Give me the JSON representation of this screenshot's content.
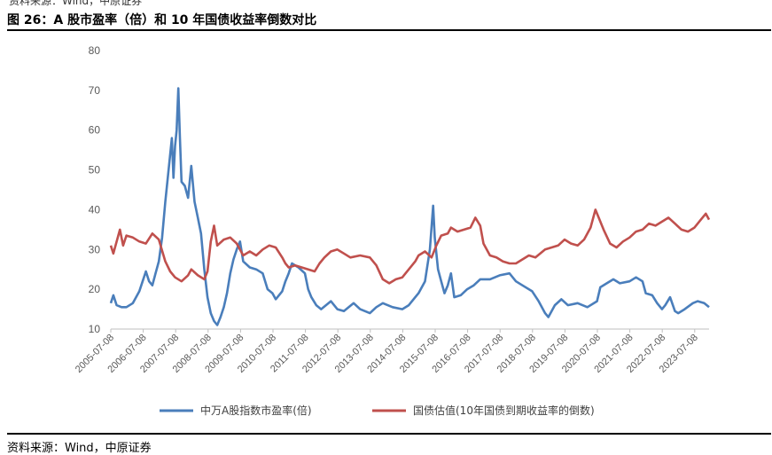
{
  "header": {
    "top_cut_text": "资料来源：Wind，中原证券",
    "figure_title": "图 26：A 股市盈率（倍）和 10 年国债收益率倒数对比"
  },
  "footer": {
    "source": "资料来源：Wind，中原证券"
  },
  "chart_data": {
    "type": "line",
    "title": "",
    "xlabel": "",
    "ylabel": "",
    "ylim": [
      10,
      80
    ],
    "yticks": [
      10,
      20,
      30,
      40,
      50,
      60,
      70,
      80
    ],
    "grid": false,
    "legend_position": "bottom",
    "x_tick_labels": [
      "2005-07-08",
      "2006-07-08",
      "2007-07-08",
      "2008-07-08",
      "2009-07-08",
      "2010-07-08",
      "2011-07-08",
      "2012-07-08",
      "2013-07-08",
      "2014-07-08",
      "2015-07-08",
      "2016-07-08",
      "2017-07-08",
      "2018-07-08",
      "2019-07-08",
      "2020-07-08",
      "2021-07-08",
      "2022-07-08",
      "2023-07-08"
    ],
    "series": [
      {
        "name": "中万A股指数市盈率(倍)",
        "color": "#4a7ebb",
        "points": [
          [
            2005.52,
            16.5
          ],
          [
            2005.6,
            18.5
          ],
          [
            2005.7,
            16.0
          ],
          [
            2005.85,
            15.5
          ],
          [
            2006.0,
            15.5
          ],
          [
            2006.2,
            16.5
          ],
          [
            2006.4,
            19.5
          ],
          [
            2006.5,
            22.0
          ],
          [
            2006.6,
            24.5
          ],
          [
            2006.7,
            22.0
          ],
          [
            2006.8,
            21.0
          ],
          [
            2006.9,
            24.0
          ],
          [
            2007.0,
            27.0
          ],
          [
            2007.1,
            33.0
          ],
          [
            2007.2,
            42.0
          ],
          [
            2007.3,
            50.0
          ],
          [
            2007.4,
            58.0
          ],
          [
            2007.45,
            48.0
          ],
          [
            2007.5,
            56.0
          ],
          [
            2007.55,
            60.0
          ],
          [
            2007.6,
            70.5
          ],
          [
            2007.65,
            58.0
          ],
          [
            2007.7,
            47.0
          ],
          [
            2007.8,
            46.0
          ],
          [
            2007.9,
            43.0
          ],
          [
            2008.0,
            51.0
          ],
          [
            2008.1,
            42.0
          ],
          [
            2008.2,
            38.0
          ],
          [
            2008.3,
            34.0
          ],
          [
            2008.4,
            25.0
          ],
          [
            2008.5,
            18.0
          ],
          [
            2008.6,
            14.0
          ],
          [
            2008.7,
            12.0
          ],
          [
            2008.8,
            11.0
          ],
          [
            2008.9,
            13.0
          ],
          [
            2009.0,
            15.5
          ],
          [
            2009.1,
            19.0
          ],
          [
            2009.2,
            24.0
          ],
          [
            2009.3,
            27.5
          ],
          [
            2009.4,
            30.0
          ],
          [
            2009.5,
            32.0
          ],
          [
            2009.6,
            27.0
          ],
          [
            2009.8,
            25.5
          ],
          [
            2010.0,
            25.0
          ],
          [
            2010.2,
            24.0
          ],
          [
            2010.35,
            20.0
          ],
          [
            2010.5,
            19.0
          ],
          [
            2010.6,
            17.5
          ],
          [
            2010.8,
            19.5
          ],
          [
            2010.9,
            22.0
          ],
          [
            2011.0,
            24.0
          ],
          [
            2011.1,
            26.5
          ],
          [
            2011.3,
            25.5
          ],
          [
            2011.5,
            24.0
          ],
          [
            2011.6,
            20.0
          ],
          [
            2011.7,
            18.0
          ],
          [
            2011.85,
            16.0
          ],
          [
            2012.0,
            15.0
          ],
          [
            2012.3,
            17.0
          ],
          [
            2012.5,
            15.0
          ],
          [
            2012.7,
            14.5
          ],
          [
            2013.0,
            16.5
          ],
          [
            2013.2,
            15.0
          ],
          [
            2013.5,
            14.0
          ],
          [
            2013.7,
            15.5
          ],
          [
            2013.9,
            16.5
          ],
          [
            2014.2,
            15.5
          ],
          [
            2014.5,
            15.0
          ],
          [
            2014.7,
            16.0
          ],
          [
            2014.9,
            18.0
          ],
          [
            2015.0,
            19.0
          ],
          [
            2015.2,
            22.0
          ],
          [
            2015.35,
            30.0
          ],
          [
            2015.45,
            41.0
          ],
          [
            2015.5,
            33.0
          ],
          [
            2015.6,
            25.0
          ],
          [
            2015.7,
            22.0
          ],
          [
            2015.8,
            19.0
          ],
          [
            2015.9,
            21.0
          ],
          [
            2016.0,
            24.0
          ],
          [
            2016.1,
            18.0
          ],
          [
            2016.3,
            18.5
          ],
          [
            2016.5,
            20.0
          ],
          [
            2016.7,
            21.0
          ],
          [
            2016.9,
            22.5
          ],
          [
            2017.2,
            22.5
          ],
          [
            2017.5,
            23.5
          ],
          [
            2017.8,
            24.0
          ],
          [
            2018.0,
            22.0
          ],
          [
            2018.2,
            21.0
          ],
          [
            2018.5,
            19.5
          ],
          [
            2018.7,
            17.0
          ],
          [
            2018.9,
            14.0
          ],
          [
            2019.0,
            13.0
          ],
          [
            2019.2,
            16.0
          ],
          [
            2019.4,
            17.5
          ],
          [
            2019.6,
            16.0
          ],
          [
            2019.9,
            16.5
          ],
          [
            2020.2,
            15.5
          ],
          [
            2020.5,
            17.0
          ],
          [
            2020.6,
            20.5
          ],
          [
            2020.8,
            21.5
          ],
          [
            2021.0,
            22.5
          ],
          [
            2021.2,
            21.5
          ],
          [
            2021.5,
            22.0
          ],
          [
            2021.7,
            23.0
          ],
          [
            2021.9,
            22.0
          ],
          [
            2022.0,
            19.0
          ],
          [
            2022.2,
            18.5
          ],
          [
            2022.35,
            16.5
          ],
          [
            2022.5,
            15.0
          ],
          [
            2022.6,
            16.0
          ],
          [
            2022.75,
            18.0
          ],
          [
            2022.9,
            14.5
          ],
          [
            2023.0,
            14.0
          ],
          [
            2023.2,
            15.0
          ],
          [
            2023.45,
            16.5
          ],
          [
            2023.6,
            17.0
          ],
          [
            2023.8,
            16.5
          ],
          [
            2023.95,
            15.5
          ]
        ]
      },
      {
        "name": "国债估值(10年国债到期收益率的倒数)",
        "color": "#c0504d",
        "points": [
          [
            2005.52,
            31.0
          ],
          [
            2005.6,
            29.0
          ],
          [
            2005.7,
            32.0
          ],
          [
            2005.8,
            35.0
          ],
          [
            2005.9,
            31.0
          ],
          [
            2006.0,
            33.5
          ],
          [
            2006.2,
            33.0
          ],
          [
            2006.4,
            32.0
          ],
          [
            2006.6,
            31.5
          ],
          [
            2006.8,
            34.0
          ],
          [
            2007.0,
            32.5
          ],
          [
            2007.2,
            27.0
          ],
          [
            2007.35,
            24.5
          ],
          [
            2007.5,
            23.0
          ],
          [
            2007.7,
            22.0
          ],
          [
            2007.9,
            23.5
          ],
          [
            2008.0,
            25.0
          ],
          [
            2008.2,
            23.5
          ],
          [
            2008.4,
            22.5
          ],
          [
            2008.5,
            24.5
          ],
          [
            2008.6,
            32.0
          ],
          [
            2008.7,
            36.0
          ],
          [
            2008.8,
            31.0
          ],
          [
            2009.0,
            32.5
          ],
          [
            2009.2,
            33.0
          ],
          [
            2009.4,
            31.5
          ],
          [
            2009.6,
            28.5
          ],
          [
            2009.8,
            29.5
          ],
          [
            2010.0,
            28.5
          ],
          [
            2010.2,
            30.0
          ],
          [
            2010.4,
            31.0
          ],
          [
            2010.6,
            30.5
          ],
          [
            2010.8,
            28.0
          ],
          [
            2010.9,
            26.5
          ],
          [
            2011.0,
            25.5
          ],
          [
            2011.2,
            26.0
          ],
          [
            2011.4,
            25.5
          ],
          [
            2011.6,
            25.0
          ],
          [
            2011.8,
            24.5
          ],
          [
            2011.95,
            26.5
          ],
          [
            2012.1,
            28.0
          ],
          [
            2012.3,
            29.5
          ],
          [
            2012.5,
            30.0
          ],
          [
            2012.7,
            29.0
          ],
          [
            2012.9,
            28.0
          ],
          [
            2013.2,
            28.5
          ],
          [
            2013.5,
            28.0
          ],
          [
            2013.7,
            26.0
          ],
          [
            2013.9,
            22.5
          ],
          [
            2014.1,
            21.5
          ],
          [
            2014.3,
            22.5
          ],
          [
            2014.5,
            23.0
          ],
          [
            2014.7,
            25.0
          ],
          [
            2014.9,
            27.0
          ],
          [
            2015.0,
            28.5
          ],
          [
            2015.2,
            29.5
          ],
          [
            2015.4,
            28.0
          ],
          [
            2015.55,
            31.0
          ],
          [
            2015.7,
            33.5
          ],
          [
            2015.9,
            34.0
          ],
          [
            2016.0,
            35.5
          ],
          [
            2016.2,
            34.5
          ],
          [
            2016.4,
            35.0
          ],
          [
            2016.6,
            35.5
          ],
          [
            2016.75,
            38.0
          ],
          [
            2016.9,
            36.0
          ],
          [
            2017.0,
            31.5
          ],
          [
            2017.2,
            28.5
          ],
          [
            2017.4,
            28.0
          ],
          [
            2017.6,
            27.0
          ],
          [
            2017.8,
            26.5
          ],
          [
            2018.0,
            26.5
          ],
          [
            2018.2,
            27.5
          ],
          [
            2018.4,
            28.5
          ],
          [
            2018.6,
            28.0
          ],
          [
            2018.9,
            30.0
          ],
          [
            2019.1,
            30.5
          ],
          [
            2019.3,
            31.0
          ],
          [
            2019.5,
            32.5
          ],
          [
            2019.7,
            31.5
          ],
          [
            2019.9,
            31.0
          ],
          [
            2020.1,
            32.5
          ],
          [
            2020.3,
            35.5
          ],
          [
            2020.45,
            40.0
          ],
          [
            2020.55,
            38.0
          ],
          [
            2020.7,
            35.0
          ],
          [
            2020.9,
            31.5
          ],
          [
            2021.1,
            30.5
          ],
          [
            2021.3,
            32.0
          ],
          [
            2021.5,
            33.0
          ],
          [
            2021.7,
            34.5
          ],
          [
            2021.9,
            35.0
          ],
          [
            2022.1,
            36.5
          ],
          [
            2022.3,
            36.0
          ],
          [
            2022.5,
            37.0
          ],
          [
            2022.7,
            38.0
          ],
          [
            2022.9,
            36.5
          ],
          [
            2023.1,
            35.0
          ],
          [
            2023.3,
            34.5
          ],
          [
            2023.5,
            35.5
          ],
          [
            2023.7,
            37.5
          ],
          [
            2023.85,
            39.0
          ],
          [
            2023.95,
            37.5
          ]
        ]
      }
    ]
  }
}
